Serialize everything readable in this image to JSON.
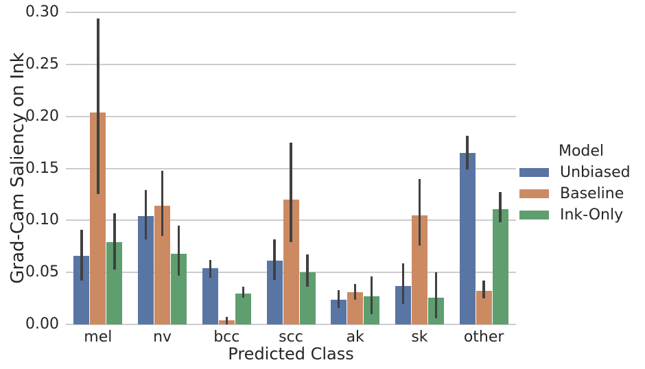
{
  "chart_data": {
    "type": "bar",
    "title": "",
    "xlabel": "Predicted Class",
    "ylabel": "Grad-Cam Saliency on Ink",
    "categories": [
      "mel",
      "nv",
      "bcc",
      "scc",
      "ak",
      "sk",
      "other"
    ],
    "ylim": [
      0,
      0.3
    ],
    "yticks": [
      0.0,
      0.05,
      0.1,
      0.15,
      0.2,
      0.25,
      0.3
    ],
    "ytick_labels": [
      "0.00",
      "0.05",
      "0.10",
      "0.15",
      "0.20",
      "0.25",
      "0.30"
    ],
    "grid": true,
    "legend": {
      "title": "Model",
      "position": "right-outside"
    },
    "error_bars": true,
    "series": [
      {
        "name": "Unbiased",
        "color": "#5875A4",
        "values": [
          0.066,
          0.104,
          0.054,
          0.061,
          0.024,
          0.037,
          0.165
        ],
        "err_low": [
          0.042,
          0.082,
          0.045,
          0.043,
          0.016,
          0.02,
          0.149
        ],
        "err_high": [
          0.091,
          0.129,
          0.062,
          0.082,
          0.033,
          0.059,
          0.181
        ]
      },
      {
        "name": "Baseline",
        "color": "#CC8A63",
        "values": [
          0.204,
          0.114,
          0.004,
          0.12,
          0.031,
          0.105,
          0.032
        ],
        "err_low": [
          0.125,
          0.085,
          0.0,
          0.079,
          0.024,
          0.076,
          0.025
        ],
        "err_high": [
          0.294,
          0.148,
          0.007,
          0.175,
          0.039,
          0.14,
          0.042
        ]
      },
      {
        "name": "Ink-Only",
        "color": "#5F9E6E",
        "values": [
          0.079,
          0.068,
          0.03,
          0.05,
          0.027,
          0.026,
          0.111
        ],
        "err_low": [
          0.053,
          0.047,
          0.026,
          0.036,
          0.01,
          0.006,
          0.098
        ],
        "err_high": [
          0.107,
          0.095,
          0.036,
          0.067,
          0.046,
          0.05,
          0.127
        ]
      }
    ],
    "style": {
      "grid_color": "#cccccc",
      "error_color": "#404040",
      "text_color": "#262626",
      "background": "#ffffff"
    }
  }
}
